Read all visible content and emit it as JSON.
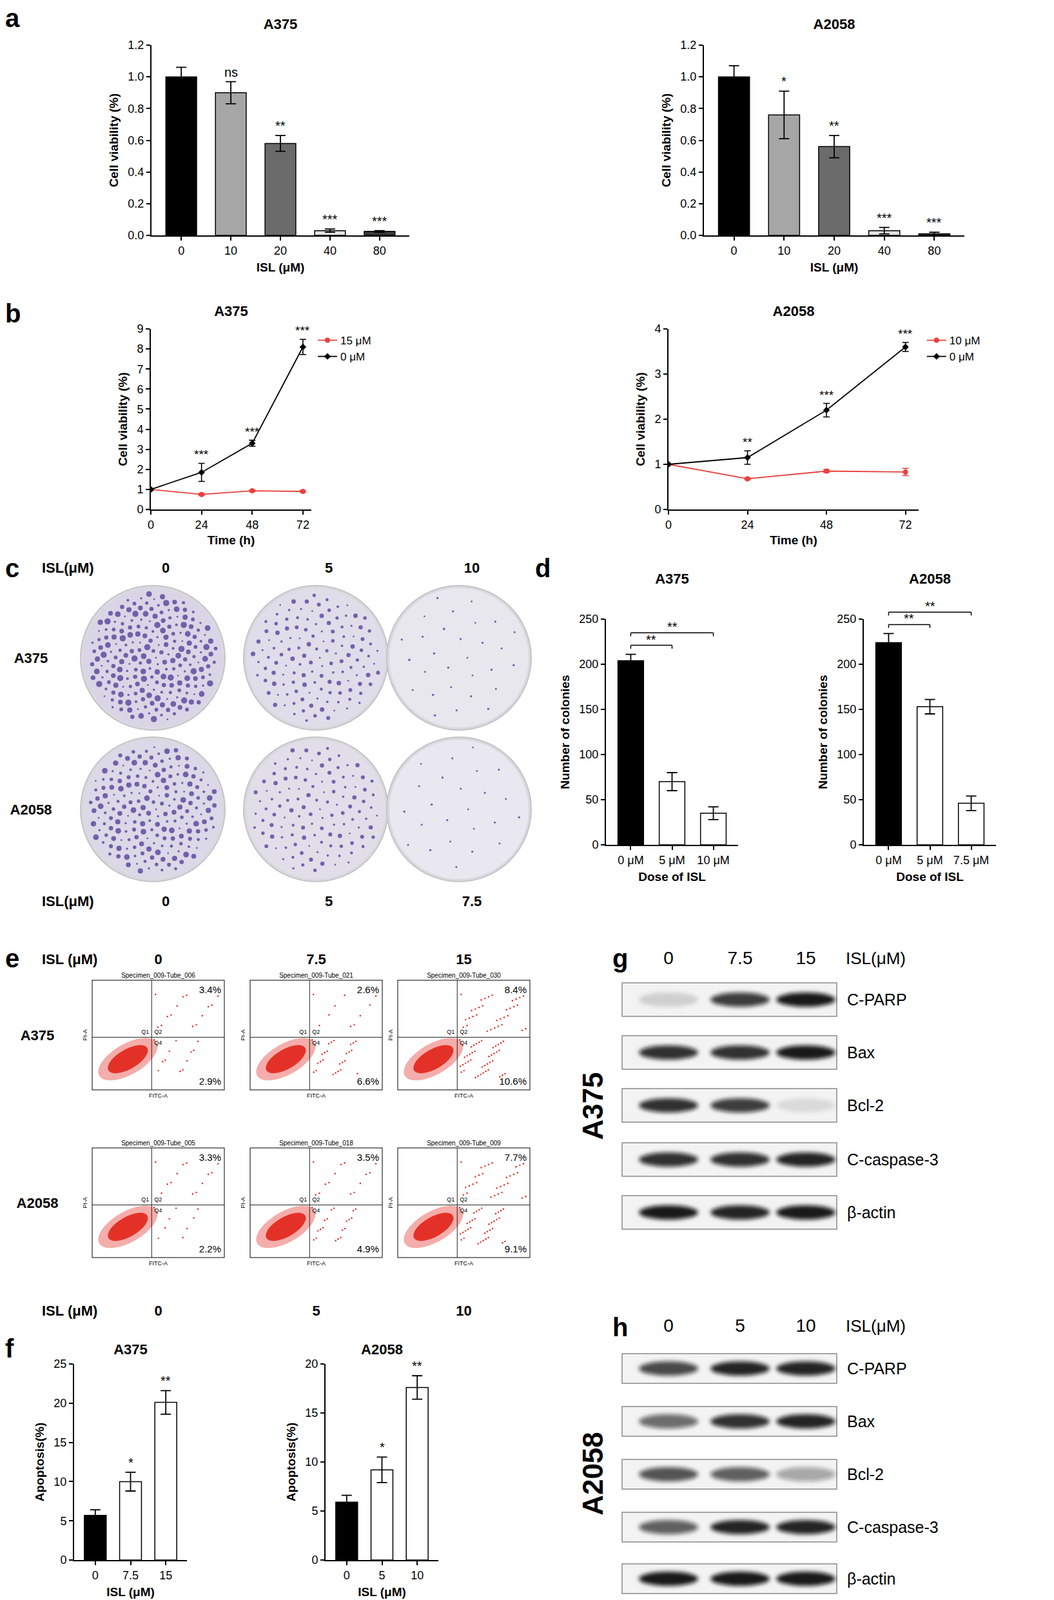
{
  "chart_data": [
    {
      "type": "bar",
      "title": "A375",
      "categories": [
        "0",
        "10",
        "20",
        "40",
        "80"
      ],
      "values": [
        1.0,
        0.9,
        0.58,
        0.03,
        0.025
      ],
      "errors": [
        0.06,
        0.07,
        0.05,
        0.01,
        0.005
      ],
      "significance": [
        null,
        "ns",
        "**",
        "***",
        "***"
      ],
      "colors": [
        "#000000",
        "#a6a6a6",
        "#6b6b6b",
        "#e3e3e3",
        "#3a3a3a"
      ],
      "xlabel": "ISL (μM)",
      "ylabel": "Cell viability (%)",
      "ylim": [
        0,
        1.2
      ],
      "yticks": [
        {
          "value": 0,
          "label": "0.0"
        },
        0.2,
        0.4,
        0.6,
        0.8,
        {
          "value": 1,
          "label": "1.0"
        },
        1.2
      ],
      "grid": false
    },
    {
      "type": "bar",
      "title": "A2058",
      "categories": [
        "0",
        "10",
        "20",
        "40",
        "80"
      ],
      "values": [
        1.0,
        0.76,
        0.56,
        0.03,
        0.01
      ],
      "errors": [
        0.07,
        0.15,
        0.07,
        0.02,
        0.01
      ],
      "significance": [
        null,
        "*",
        "**",
        "***",
        "***"
      ],
      "colors": [
        "#000000",
        "#a6a6a6",
        "#6b6b6b",
        "#e3e3e3",
        "#3a3a3a"
      ],
      "xlabel": "ISL (μM)",
      "ylabel": "Cell viability (%)",
      "ylim": [
        0,
        1.2
      ],
      "yticks": [
        {
          "value": 0,
          "label": "0.0"
        },
        0.2,
        0.4,
        0.6,
        0.8,
        {
          "value": 1,
          "label": "1.0"
        },
        1.2
      ],
      "grid": false
    },
    {
      "type": "line",
      "title": "A375",
      "x": [
        0,
        24,
        48,
        72
      ],
      "xlim": [
        0,
        76
      ],
      "xticks": [
        0,
        24,
        48,
        72
      ],
      "ylim": [
        0,
        9
      ],
      "yticks": [
        0,
        1,
        2,
        3,
        4,
        5,
        6,
        7,
        8,
        9
      ],
      "xlabel": "Time (h)",
      "ylabel": "Cell viability (%)",
      "series": [
        {
          "name": "15 μM",
          "color": "#e8413c",
          "marker": "circle",
          "values": [
            1,
            0.75,
            0.93,
            0.9
          ],
          "errors": [
            0,
            0.04,
            0.04,
            0.04
          ]
        },
        {
          "name": "0 μM",
          "color": "#000000",
          "marker": "diamond",
          "values": [
            1,
            1.85,
            3.3,
            8.1
          ],
          "errors": [
            0,
            0.45,
            0.15,
            0.38
          ]
        }
      ],
      "significance": [
        null,
        "***",
        "***",
        "***"
      ],
      "legend": "upper right",
      "grid": false
    },
    {
      "type": "line",
      "title": "A2058",
      "x": [
        0,
        24,
        48,
        72
      ],
      "xlim": [
        0,
        76
      ],
      "xticks": [
        0,
        24,
        48,
        72
      ],
      "ylim": [
        0,
        4
      ],
      "yticks": [
        0,
        1,
        2,
        3,
        4
      ],
      "xlabel": "Time (h)",
      "ylabel": "Cell viability (%)",
      "series": [
        {
          "name": "10 μM",
          "color": "#e8413c",
          "marker": "circle",
          "values": [
            1,
            0.68,
            0.85,
            0.83
          ],
          "errors": [
            0,
            0.02,
            0.03,
            0.08
          ]
        },
        {
          "name": "0 μM",
          "color": "#000000",
          "marker": "diamond",
          "values": [
            1,
            1.15,
            2.2,
            3.6
          ],
          "errors": [
            0,
            0.15,
            0.15,
            0.1
          ]
        }
      ],
      "significance": [
        null,
        "**",
        "***",
        "***"
      ],
      "legend": "upper right",
      "grid": false
    },
    {
      "type": "bar",
      "title": "A375",
      "categories": [
        "0 μM",
        "5 μM",
        "10 μM"
      ],
      "values": [
        204,
        70,
        35
      ],
      "errors": [
        7,
        10,
        7
      ],
      "colors": [
        "#000000",
        "#ffffff",
        "#ffffff"
      ],
      "comparisons": [
        {
          "from": "0 μM",
          "to": "5 μM",
          "label": "**"
        },
        {
          "from": "0 μM",
          "to": "10 μM",
          "label": "**"
        }
      ],
      "xlabel": "Dose of ISL",
      "ylabel": "Number of colonies",
      "ylim": [
        0,
        250
      ],
      "yticks": [
        0,
        50,
        100,
        150,
        200,
        250
      ],
      "grid": false
    },
    {
      "type": "bar",
      "title": "A2058",
      "categories": [
        "0 μM",
        "5 μM",
        "7.5 μM"
      ],
      "values": [
        224,
        153,
        46
      ],
      "errors": [
        10,
        8,
        8
      ],
      "colors": [
        "#000000",
        "#ffffff",
        "#ffffff"
      ],
      "comparisons": [
        {
          "from": "0 μM",
          "to": "5 μM",
          "label": "**"
        },
        {
          "from": "0 μM",
          "to": "7.5 μM",
          "label": "**"
        }
      ],
      "xlabel": "Dose of ISL",
      "ylabel": "Number of colonies",
      "ylim": [
        0,
        250
      ],
      "yticks": [
        0,
        50,
        100,
        150,
        200,
        250
      ],
      "grid": false
    },
    {
      "type": "bar",
      "title": "A375",
      "categories": [
        "0",
        "7.5",
        "15"
      ],
      "values": [
        5.7,
        10,
        20.1
      ],
      "errors": [
        0.7,
        1.2,
        1.5
      ],
      "significance": [
        null,
        "*",
        "**"
      ],
      "colors": [
        "#000000",
        "#ffffff",
        "#ffffff"
      ],
      "xlabel": "ISL (μM)",
      "ylabel": "Apoptosis(%)",
      "ylim": [
        0,
        25
      ],
      "yticks": [
        0,
        5,
        10,
        15,
        20,
        25
      ],
      "grid": false
    },
    {
      "type": "bar",
      "title": "A2058",
      "categories": [
        "0",
        "5",
        "10"
      ],
      "values": [
        5.9,
        9.2,
        17.6
      ],
      "errors": [
        0.7,
        1.3,
        1.2
      ],
      "significance": [
        null,
        "*",
        "**"
      ],
      "colors": [
        "#000000",
        "#ffffff",
        "#ffffff"
      ],
      "xlabel": "ISL (μM)",
      "ylabel": "Apoptosis(%)",
      "ylim": [
        0,
        20
      ],
      "yticks": [
        0,
        5,
        10,
        15,
        20
      ],
      "grid": false
    }
  ],
  "panel_labels": [
    "a",
    "b",
    "c",
    "d",
    "e",
    "f",
    "g",
    "h"
  ],
  "colony_plates": {
    "header": "ISL(μM)",
    "rows": [
      {
        "label": "A375",
        "doses": [
          "0",
          "5",
          "10"
        ],
        "density": [
          0.9,
          0.55,
          0.12
        ]
      },
      {
        "label": "A2058",
        "doses": [
          "0",
          "5",
          "7.5"
        ],
        "density": [
          0.8,
          0.5,
          0.1
        ]
      }
    ]
  },
  "flow_cytometry": {
    "header": "ISL (μM)",
    "x_label": "FITC-A",
    "y_label": "PI-A",
    "quadrant_names": [
      "Q1",
      "Q2",
      "Q4"
    ],
    "rows": [
      {
        "label": "A375",
        "doses": [
          "0",
          "7.5",
          "15"
        ],
        "plots": [
          {
            "title": "Specimen_009-Tube_006",
            "values": [
              3.4,
              2.9
            ],
            "value_labels": [
              "3.4%",
              "2.9%"
            ]
          },
          {
            "title": "Specimen_009-Tube_021",
            "values": [
              2.6,
              6.6
            ],
            "value_labels": [
              "2.6%",
              "6.6%"
            ]
          },
          {
            "title": "Specimen_009-Tube_030",
            "values": [
              8.4,
              10.6
            ],
            "value_labels": [
              "8.4%",
              "10.6%"
            ]
          }
        ]
      },
      {
        "label": "A2058",
        "doses": [
          "0",
          "5",
          "10"
        ],
        "plots": [
          {
            "title": "Specimen_009-Tube_005",
            "values": [
              3.3,
              2.2
            ],
            "value_labels": [
              "3.3%",
              "2.2%"
            ]
          },
          {
            "title": "Specimen_009-Tube_018",
            "values": [
              3.5,
              4.9
            ],
            "value_labels": [
              "3.5%",
              "4.9%"
            ]
          },
          {
            "title": "Specimen_009-Tube_009",
            "values": [
              7.7,
              9.1
            ],
            "value_labels": [
              "7.7%",
              "9.1%"
            ]
          }
        ]
      }
    ]
  },
  "western_blots": [
    {
      "cell_line": "A375",
      "header": "ISL(μM)",
      "doses": [
        "0",
        "7.5",
        "15"
      ],
      "bands": [
        {
          "name": "C-PARP",
          "intensity": [
            0.15,
            0.8,
            0.95
          ]
        },
        {
          "name": "Bax",
          "intensity": [
            0.85,
            0.85,
            0.95
          ]
        },
        {
          "name": "Bcl-2",
          "intensity": [
            0.85,
            0.8,
            0.1
          ]
        },
        {
          "name": "C-caspase-3",
          "intensity": [
            0.85,
            0.85,
            0.9
          ]
        },
        {
          "name": "β-actin",
          "intensity": [
            0.95,
            0.9,
            0.95
          ]
        }
      ]
    },
    {
      "cell_line": "A2058",
      "header": "ISL(μM)",
      "doses": [
        "0",
        "5",
        "10"
      ],
      "bands": [
        {
          "name": "C-PARP",
          "intensity": [
            0.75,
            0.9,
            0.9
          ]
        },
        {
          "name": "Bax",
          "intensity": [
            0.6,
            0.85,
            0.9
          ]
        },
        {
          "name": "Bcl-2",
          "intensity": [
            0.7,
            0.65,
            0.35
          ]
        },
        {
          "name": "C-caspase-3",
          "intensity": [
            0.65,
            0.9,
            0.9
          ]
        },
        {
          "name": "β-actin",
          "intensity": [
            0.95,
            0.95,
            0.95
          ]
        }
      ]
    }
  ]
}
